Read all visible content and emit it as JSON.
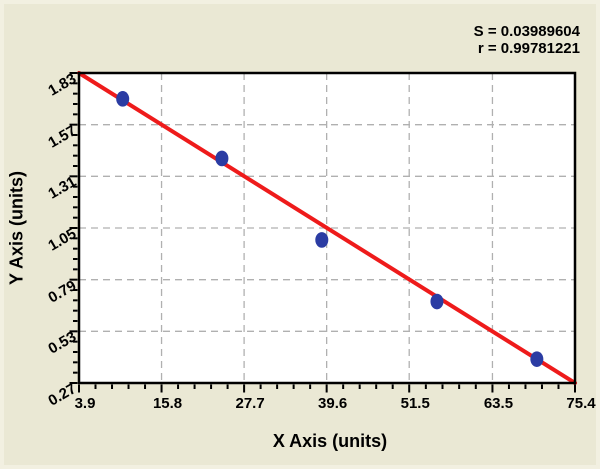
{
  "stats": {
    "line1": "S = 0.03989604",
    "line2": "r = 0.99781221"
  },
  "chart_data": {
    "type": "scatter",
    "title": "",
    "xlabel": "X Axis (units)",
    "ylabel": "Y Axis (units)",
    "xlim": [
      3.9,
      75.4
    ],
    "ylim": [
      0.27,
      1.83
    ],
    "x_ticks": [
      3.9,
      15.8,
      27.7,
      39.6,
      51.5,
      63.5,
      75.4
    ],
    "x_tick_labels": [
      "3.9",
      "15.8",
      "27.7",
      "39.6",
      "51.5",
      "63.5",
      "75.4"
    ],
    "y_ticks": [
      0.27,
      0.53,
      0.79,
      1.05,
      1.31,
      1.57,
      1.83
    ],
    "y_tick_labels": [
      "0.27",
      "0.53",
      "0.79",
      "1.05",
      "1.31",
      "1.57",
      "1.83"
    ],
    "minor_ticks_per_interval": 4,
    "grid": "dashed",
    "legend": "none",
    "points": [
      [
        10.2,
        1.7
      ],
      [
        24.5,
        1.4
      ],
      [
        38.9,
        0.99
      ],
      [
        55.5,
        0.68
      ],
      [
        69.9,
        0.39
      ]
    ],
    "regression_line": {
      "x1": 3.9,
      "y1": 1.83,
      "x2": 75.4,
      "y2": 0.27
    },
    "regression_stats": {
      "S": 0.03989604,
      "r": 0.99781221
    },
    "colors": {
      "background": "#eae8d4",
      "frame_edge": "#f2f0e1",
      "plot_background": "#ffffff",
      "axis": "#000000",
      "grid": "#b0b0b0",
      "line": "#ee1b1b",
      "point": "#2b3ca3",
      "text": "#000000"
    }
  }
}
